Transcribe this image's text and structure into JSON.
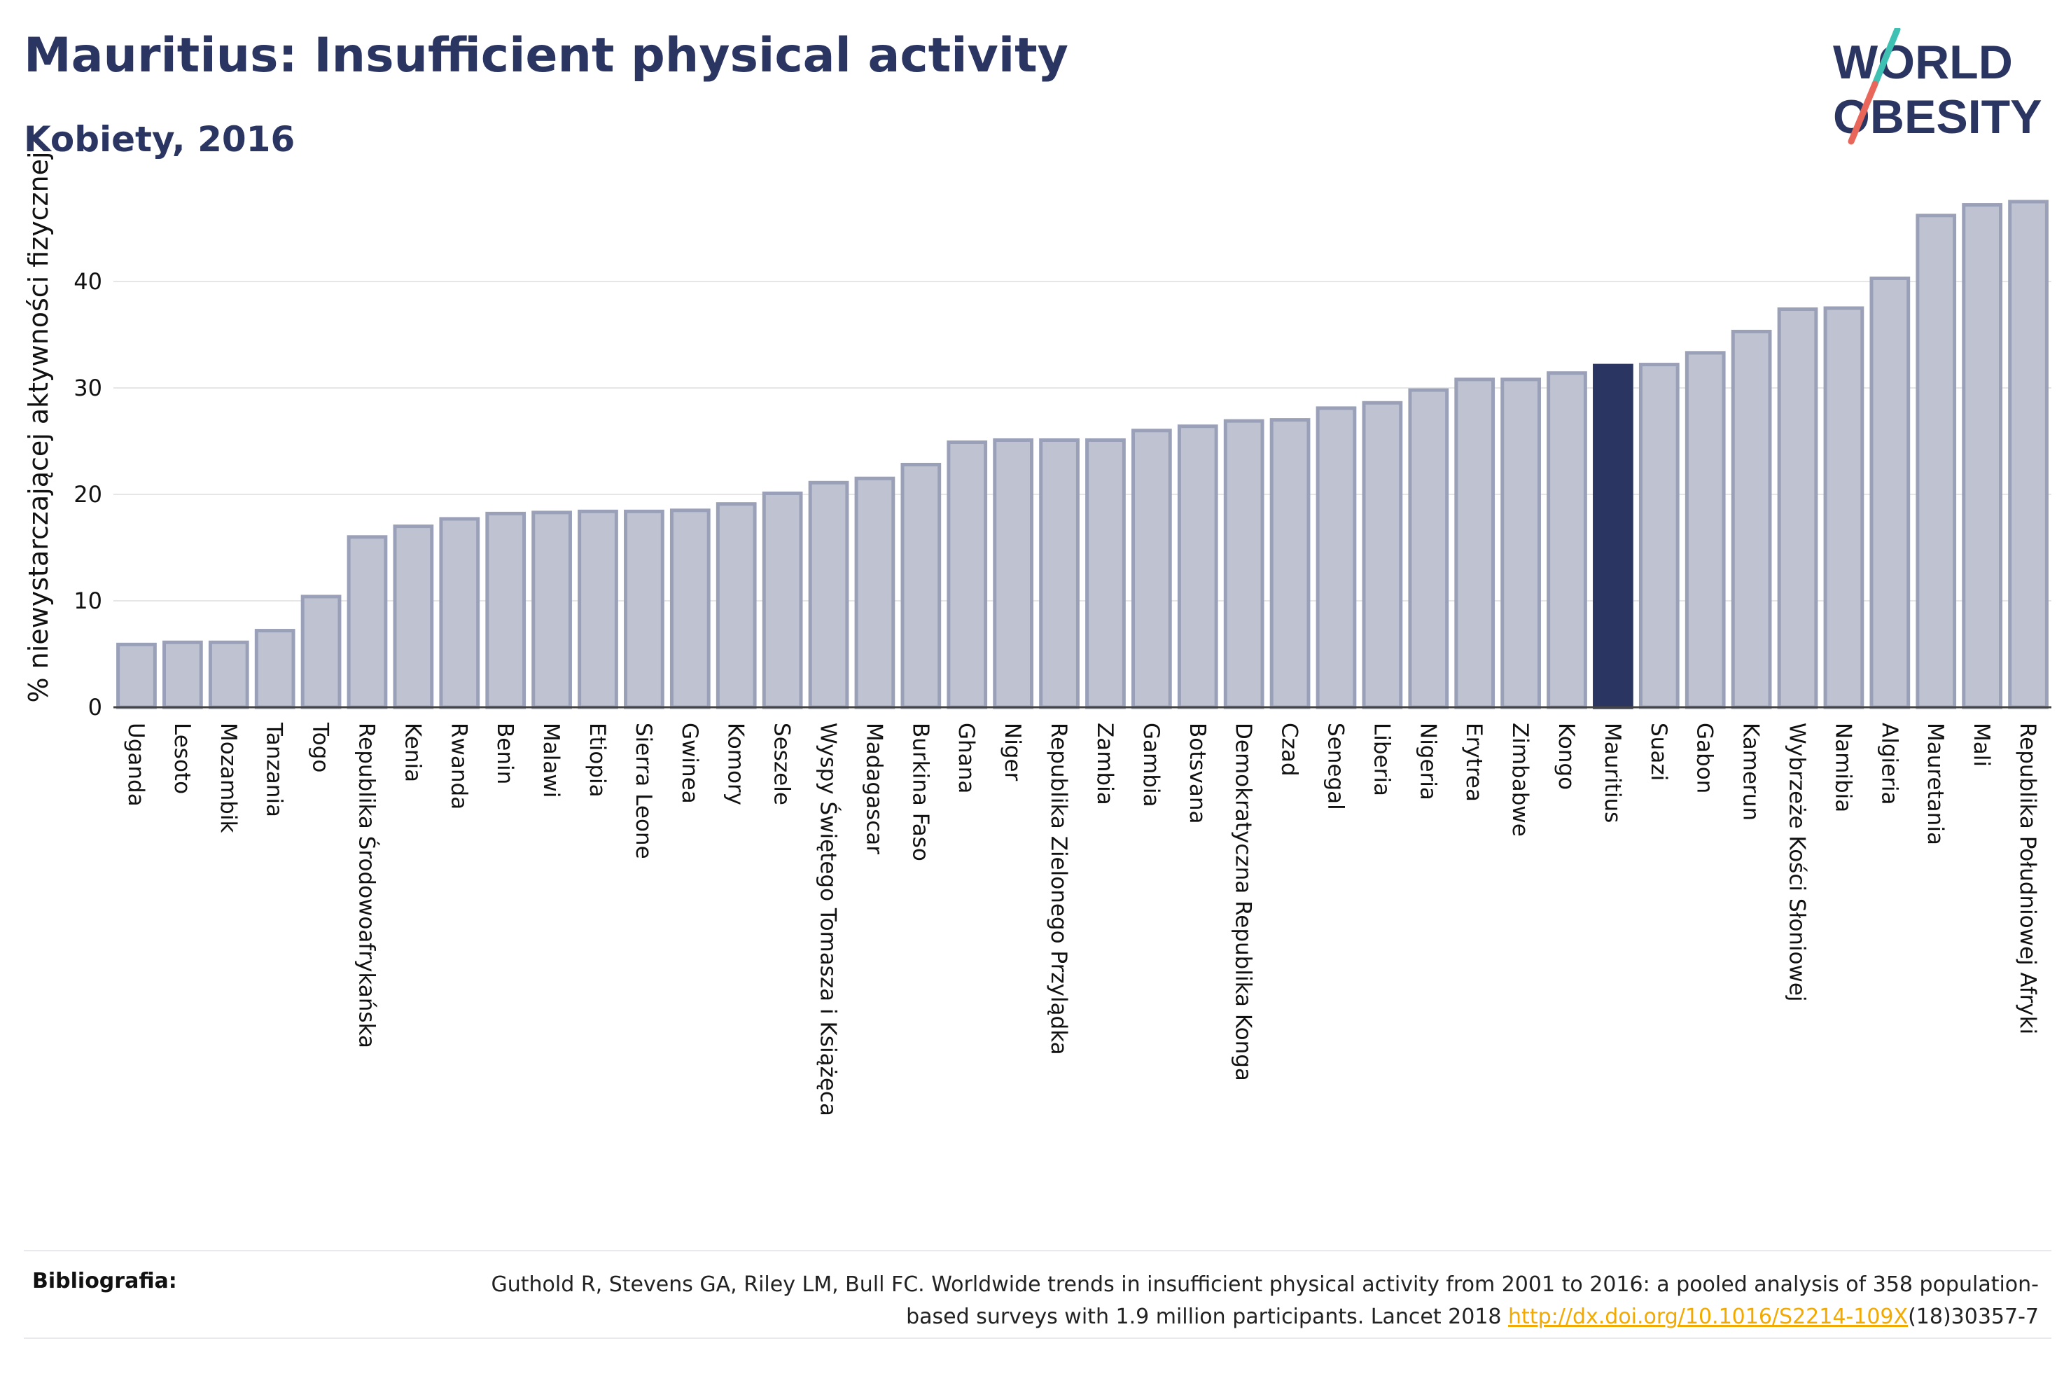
{
  "header": {
    "title": "Mauritius: Insufficient physical activity",
    "subtitle": "Kobiety, 2016"
  },
  "logo": {
    "line1": "WORLD",
    "line2": "OBESITY",
    "slash_colors": [
      "#3ec1b3",
      "#e8665a"
    ]
  },
  "colors": {
    "bar": "#bfc3d1",
    "bar_border": "#9aa0b8",
    "highlight": "#2b3562",
    "grid": "#e6e6e6",
    "axis_text": "#111111"
  },
  "chart_data": {
    "type": "bar",
    "title": "Mauritius: Insufficient physical activity",
    "subtitle": "Kobiety, 2016",
    "ylabel": "% niewystarczającej aktywności fizycznej",
    "ylim": [
      0,
      50
    ],
    "yticks": [
      0,
      10,
      20,
      30,
      40
    ],
    "grid": true,
    "highlight": "Mauritius",
    "categories": [
      "Uganda",
      "Lesoto",
      "Mozambik",
      "Tanzania",
      "Togo",
      "Republika Środowoafrykańska",
      "Kenia",
      "Rwanda",
      "Benin",
      "Malawi",
      "Etiopia",
      "Sierra Leone",
      "Gwinea",
      "Komory",
      "Seszele",
      "Wyspy Świętego Tomasza i Książęca",
      "Madagascar",
      "Burkina Faso",
      "Ghana",
      "Niger",
      "Republika Zielonego Przylądka",
      "Zambia",
      "Gambia",
      "Botsvana",
      "Demokratyczna Republika Konga",
      "Czad",
      "Senegal",
      "Liberia",
      "Nigeria",
      "Erytrea",
      "Zimbabwe",
      "Kongo",
      "Mauritius",
      "Suazi",
      "Gabon",
      "Kamerun",
      "Wybrzeże Kości Słoniowej",
      "Namibia",
      "Algieria",
      "Mauretania",
      "Mali",
      "Republika Południowej Afryki"
    ],
    "values": [
      5.9,
      6.1,
      6.1,
      7.2,
      10.4,
      16.0,
      17.0,
      17.7,
      18.2,
      18.3,
      18.4,
      18.4,
      18.5,
      19.1,
      20.1,
      21.1,
      21.5,
      22.8,
      24.9,
      25.1,
      25.1,
      25.1,
      26.0,
      26.4,
      26.9,
      27.0,
      28.1,
      28.6,
      29.8,
      30.8,
      30.8,
      31.4,
      32.1,
      32.2,
      33.3,
      35.3,
      37.4,
      37.5,
      40.3,
      46.2,
      47.2,
      47.5
    ]
  },
  "references": {
    "label": "Bibliografia:",
    "text_before": "Guthold R, Stevens GA, Riley LM, Bull FC. Worldwide trends in insufficient physical activity from 2001 to 2016: a pooled analysis of 358 population-based surveys with 1.9 million participants. Lancet 2018 ",
    "link": "http://dx.doi.org/10.1016/S2214-109X",
    "text_after": "(18)30357-7"
  }
}
